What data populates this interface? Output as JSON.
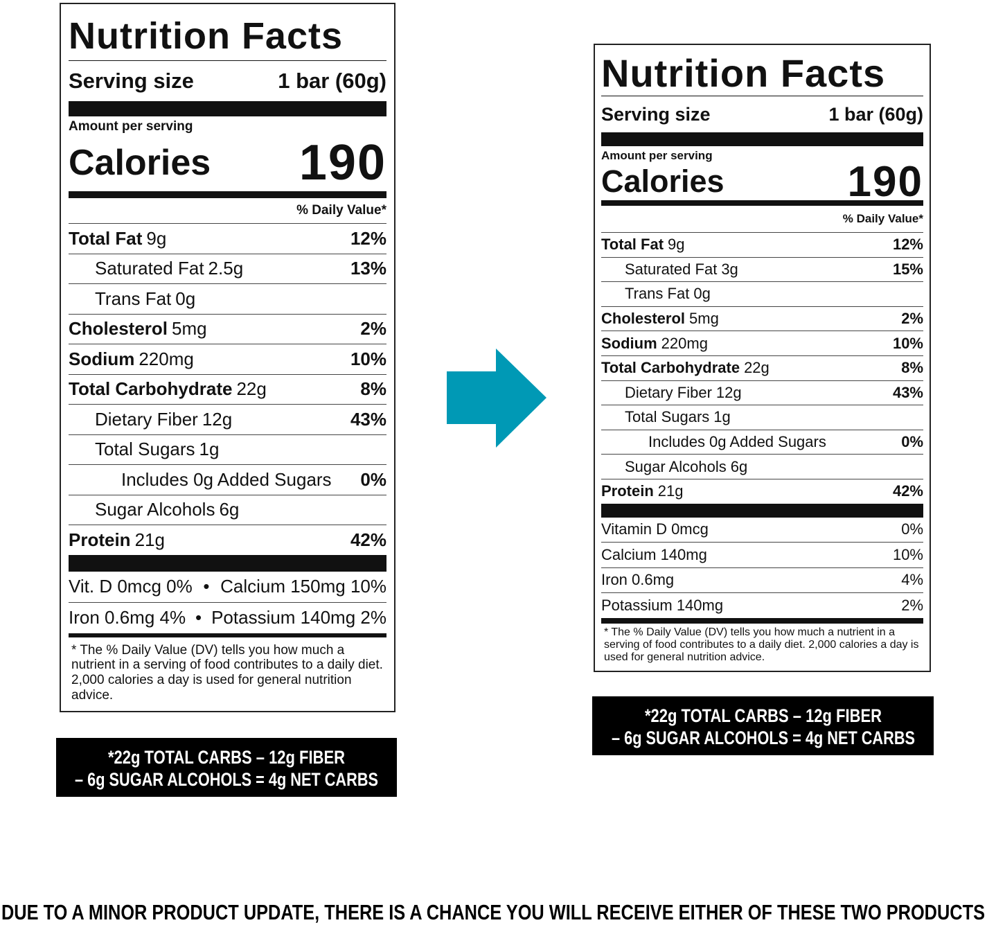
{
  "left": {
    "title": "Nutrition Facts",
    "serving_size_label": "Serving size",
    "serving_size": "1 bar (60g)",
    "amount_per_serving": "Amount per serving",
    "calories_label": "Calories",
    "calories": 190,
    "daily_value_header": "% Daily Value*",
    "rows": [
      {
        "name": "Total Fat",
        "amount": "9g",
        "dv": "12%"
      },
      {
        "name": "Saturated Fat",
        "amount": "2.5g",
        "dv": "13%"
      },
      {
        "name": "Trans Fat",
        "amount": "0g"
      },
      {
        "name": "Cholesterol",
        "amount": "5mg",
        "dv": "2%"
      },
      {
        "name": "Sodium",
        "amount": "220mg",
        "dv": "10%"
      },
      {
        "name": "Total Carbohydrate",
        "amount": "22g",
        "dv": "8%"
      },
      {
        "name": "Dietary Fiber",
        "amount": "12g",
        "dv": "43%"
      },
      {
        "name": "Total Sugars",
        "amount": "1g"
      },
      {
        "name": "Includes 0g Added Sugars",
        "dv": "0%"
      },
      {
        "name": "Sugar Alcohols",
        "amount": "6g"
      },
      {
        "name": "Protein",
        "amount": "21g",
        "dv": "42%"
      }
    ],
    "vitamins": [
      [
        "Vit. D 0mcg 0%",
        "Calcium 150mg 10%"
      ],
      [
        "Iron 0.6mg 4%",
        "Potassium 140mg 2%"
      ]
    ],
    "vitamin_separator": "•",
    "footnote": "* The % Daily Value (DV) tells you how much a nutrient in a serving of food contributes to a daily diet. 2,000 calories a day is used for general nutrition advice.",
    "net_carbs": [
      "*22g TOTAL CARBS – 12g FIBER",
      "– 6g SUGAR ALCOHOLS = 4g NET CARBS"
    ]
  },
  "right": {
    "title": "Nutrition Facts",
    "serving_size_label": "Serving size",
    "serving_size": "1 bar (60g)",
    "amount_per_serving": "Amount per serving",
    "calories_label": "Calories",
    "calories": 190,
    "daily_value_header": "% Daily Value*",
    "rows": [
      {
        "name": "Total Fat",
        "amount": "9g",
        "dv": "12%"
      },
      {
        "name": "Saturated Fat",
        "amount": "3g",
        "dv": "15%"
      },
      {
        "name": "Trans Fat",
        "amount": "0g"
      },
      {
        "name": "Cholesterol",
        "amount": "5mg",
        "dv": "2%"
      },
      {
        "name": "Sodium",
        "amount": "220mg",
        "dv": "10%"
      },
      {
        "name": "Total Carbohydrate",
        "amount": "22g",
        "dv": "8%"
      },
      {
        "name": "Dietary Fiber",
        "amount": "12g",
        "dv": "43%"
      },
      {
        "name": "Total Sugars",
        "amount": "1g"
      },
      {
        "name": "Includes 0g Added Sugars",
        "dv": "0%"
      },
      {
        "name": "Sugar Alcohols",
        "amount": "6g"
      },
      {
        "name": "Protein",
        "amount": "21g",
        "dv": "42%"
      }
    ],
    "vitamins": [
      {
        "name": "Vitamin D 0mcg",
        "dv": "0%"
      },
      {
        "name": "Calcium 140mg",
        "dv": "10%"
      },
      {
        "name": "Iron 0.6mg",
        "dv": "4%"
      },
      {
        "name": "Potassium 140mg",
        "dv": "2%"
      }
    ],
    "footnote": "* The % Daily Value (DV) tells you how much a nutrient in a serving of food contributes to a daily diet. 2,000 calories a day is used for general nutrition advice.",
    "net_carbs": [
      "*22g TOTAL CARBS – 12g FIBER",
      "– 6g SUGAR ALCOHOLS = 4g NET CARBS"
    ]
  },
  "notice": "DUE TO A MINOR PRODUCT UPDATE, THERE IS A CHANCE YOU WILL RECEIVE EITHER OF THESE TWO PRODUCTS"
}
